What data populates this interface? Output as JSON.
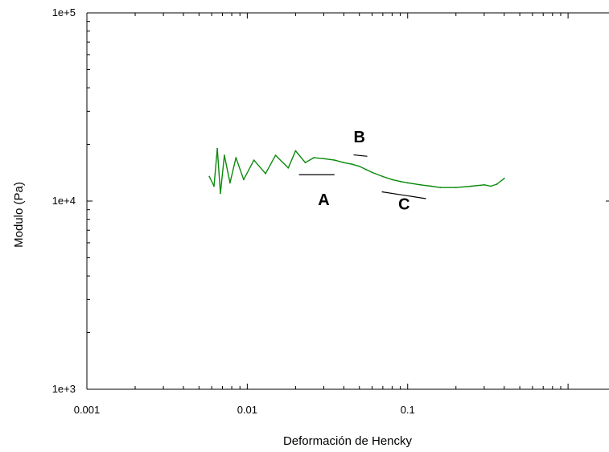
{
  "chart_data": {
    "type": "line",
    "title": "",
    "xlabel": "Deformación de Hencky",
    "ylabel": "Modulo (Pa)",
    "x_scale": "log",
    "y_scale": "log",
    "xlim": [
      0.001,
      1.8
    ],
    "ylim": [
      1000,
      100000
    ],
    "x_tick_labels": [
      {
        "value": 0.001,
        "label": "0.001"
      },
      {
        "value": 0.01,
        "label": "0.01"
      },
      {
        "value": 0.1,
        "label": "0.1"
      }
    ],
    "y_tick_labels": [
      {
        "value": 1000,
        "label": "1e+3"
      },
      {
        "value": 10000,
        "label": "1e+4"
      },
      {
        "value": 100000,
        "label": "1e+5"
      }
    ],
    "grid": false,
    "legend": "none",
    "series": [
      {
        "color": "#0a8a0a",
        "x": [
          0.0058,
          0.0062,
          0.0065,
          0.0068,
          0.0072,
          0.0078,
          0.0085,
          0.0095,
          0.011,
          0.013,
          0.015,
          0.018,
          0.02,
          0.023,
          0.026,
          0.03,
          0.035,
          0.04,
          0.045,
          0.05,
          0.055,
          0.06,
          0.07,
          0.08,
          0.09,
          0.1,
          0.12,
          0.14,
          0.16,
          0.2,
          0.25,
          0.3,
          0.33,
          0.36,
          0.4
        ],
        "y": [
          13500,
          12000,
          19000,
          11000,
          17500,
          12500,
          17000,
          13000,
          16500,
          14000,
          17500,
          15000,
          18500,
          16000,
          17000,
          16800,
          16500,
          16000,
          15700,
          15300,
          14700,
          14200,
          13500,
          13000,
          12700,
          12500,
          12200,
          12000,
          11800,
          11800,
          12000,
          12200,
          12000,
          12300,
          13200
        ]
      }
    ],
    "annotations": [
      {
        "label": "A",
        "x": 0.03,
        "y": 9500,
        "line_x": [
          0.021,
          0.035
        ],
        "line_y": [
          13800,
          13800
        ]
      },
      {
        "label": "B",
        "x": 0.05,
        "y": 20500,
        "line_x": [
          0.046,
          0.056
        ],
        "line_y": [
          17600,
          17300
        ]
      },
      {
        "label": "C",
        "x": 0.095,
        "y": 9000,
        "line_x": [
          0.069,
          0.13
        ],
        "line_y": [
          11200,
          10300
        ]
      }
    ]
  }
}
